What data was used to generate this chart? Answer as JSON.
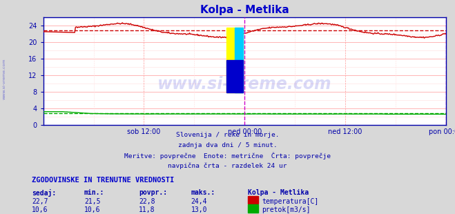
{
  "title": "Kolpa - Metlika",
  "title_color": "#0000cc",
  "bg_color": "#d8d8d8",
  "plot_bg_color": "#ffffff",
  "grid_color_major": "#ff9999",
  "grid_color_minor": "#ffdddd",
  "xlabel_ticks": [
    "sob 12:00",
    "ned 00:00",
    "ned 12:00",
    "pon 00:00"
  ],
  "xlabel_tick_positions": [
    0.25,
    0.5,
    0.75,
    1.0
  ],
  "ylim": [
    0,
    26
  ],
  "yticks": [
    0,
    4,
    8,
    12,
    16,
    20,
    24
  ],
  "temp_avg": 22.8,
  "flow_avg": 11.8,
  "temp_color": "#cc0000",
  "flow_color": "#00aa00",
  "temp_avg_color": "#cc0000",
  "flow_avg_color": "#00aa00",
  "vline_color": "#cc00cc",
  "border_color": "#0000aa",
  "axis_color": "#0000aa",
  "watermark": "www.si-vreme.com",
  "watermark_color": "#0000cc",
  "watermark_alpha": 0.15,
  "subtitle_lines": [
    "Slovenija / reke in morje.",
    "zadnja dva dni / 5 minut.",
    "Meritve: povprečne  Enote: metrične  Črta: povprečje",
    "navpična črta - razdelek 24 ur"
  ],
  "subtitle_color": "#0000aa",
  "table_header": "ZGODOVINSKE IN TRENUTNE VREDNOSTI",
  "table_header_color": "#0000cc",
  "col_headers": [
    "sedaj:",
    "min.:",
    "povpr.:",
    "maks.:",
    "Kolpa - Metlika"
  ],
  "col_header_color": "#0000aa",
  "row1_values": [
    "22,7",
    "21,5",
    "22,8",
    "24,4"
  ],
  "row1_label": "temperatura[C]",
  "row1_color": "#cc0000",
  "row2_values": [
    "10,6",
    "10,6",
    "11,8",
    "13,0"
  ],
  "row2_label": "pretok[m3/s]",
  "row2_color": "#00aa00",
  "value_color": "#0000aa",
  "n_points": 576,
  "temp_base": 22.8,
  "flow_scale": 0.25
}
